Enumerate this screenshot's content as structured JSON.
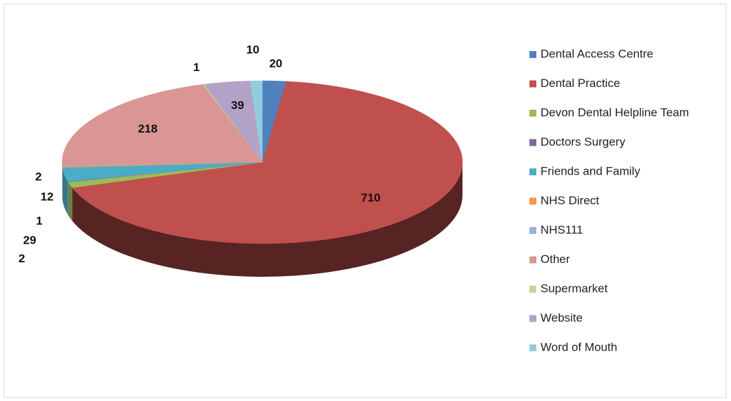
{
  "chart_data": {
    "type": "pie3d",
    "categories": [
      "Dental Access Centre",
      "Dental Practice",
      "Devon Dental Helpline Team",
      "Doctors Surgery",
      "Friends and Family",
      "NHS Direct",
      "NHS111",
      "Other",
      "Supermarket",
      "Website",
      "Word of Mouth"
    ],
    "values": [
      20,
      710,
      12,
      1,
      29,
      2,
      2,
      218,
      1,
      39,
      10
    ],
    "colors": [
      "#4F81BD",
      "#C0504D",
      "#9BBB59",
      "#8064A2",
      "#4BACC6",
      "#F79646",
      "#95B3D7",
      "#D99694",
      "#C3D69B",
      "#B3A2C7",
      "#93CDDD"
    ],
    "legend": "right"
  }
}
